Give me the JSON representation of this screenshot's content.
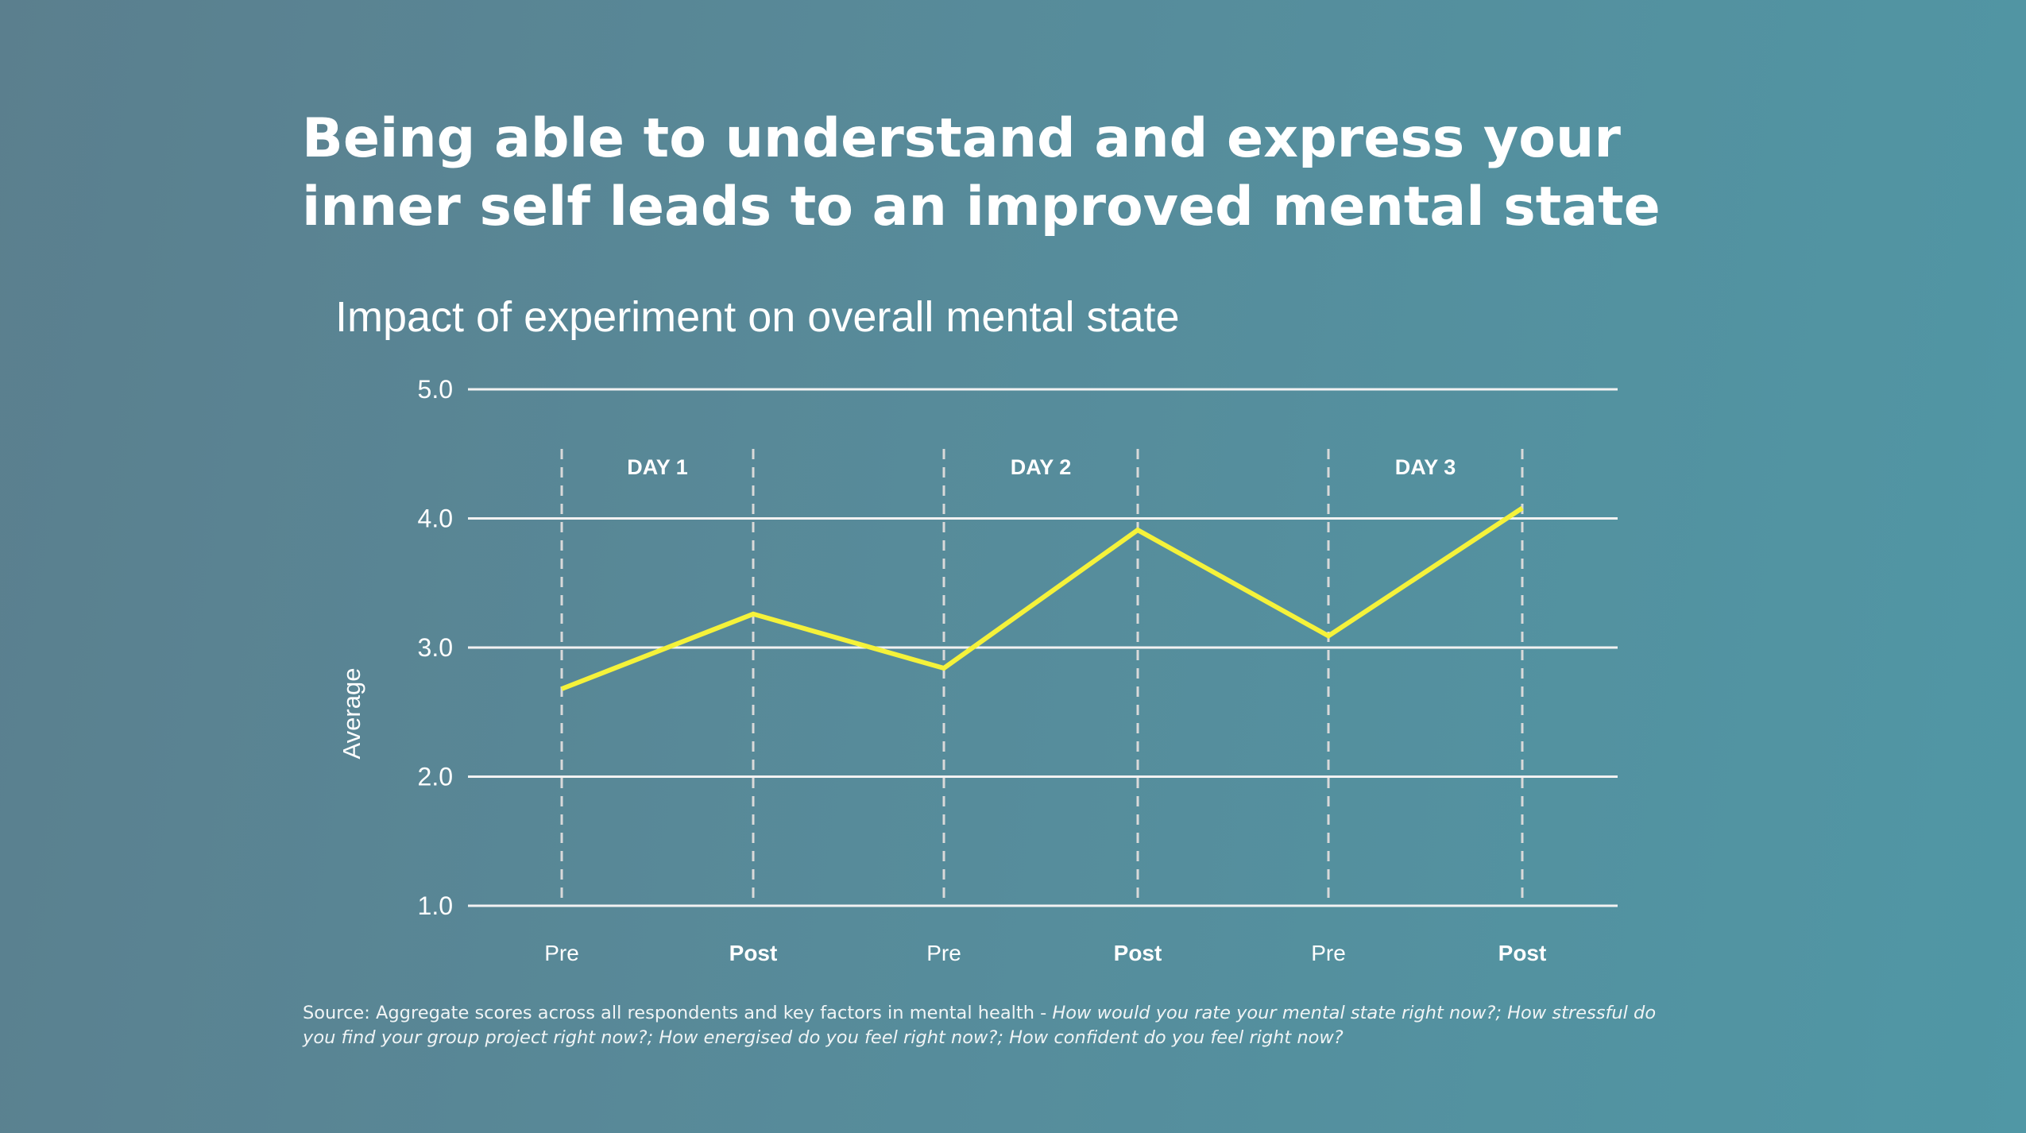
{
  "headline": {
    "line1": "Being able to understand and express your",
    "line2": "inner self leads to an improved mental state"
  },
  "source": {
    "prefix": "Source: Aggregate scores across all respondents and key factors in mental health - ",
    "questions": "How would you rate your mental state right now?; How stressful do you find your group project right now?; How energised do you feel right now?; How confident do you feel right now?"
  },
  "colors": {
    "line": "#f5f23a",
    "gridline": "#f2f2f2",
    "divider": "#d9d9d9",
    "text": "#ffffff"
  },
  "chart_data": {
    "type": "line",
    "title": "Impact of experiment on overall mental state",
    "xlabel": "",
    "ylabel": "Average",
    "ylim": [
      1.0,
      5.0
    ],
    "yticks": [
      "1.0",
      "2.0",
      "3.0",
      "4.0",
      "5.0"
    ],
    "grid": true,
    "categories": [
      "Pre",
      "Post",
      "Pre",
      "Post",
      "Pre",
      "Post"
    ],
    "category_bold": [
      false,
      true,
      false,
      true,
      false,
      true
    ],
    "groups": [
      {
        "label": "DAY 1",
        "span": [
          0,
          1
        ]
      },
      {
        "label": "DAY 2",
        "span": [
          2,
          3
        ]
      },
      {
        "label": "DAY 3",
        "span": [
          4,
          5
        ]
      }
    ],
    "series": [
      {
        "name": "Average",
        "values": [
          2.68,
          3.26,
          2.84,
          3.91,
          3.09,
          4.08
        ]
      }
    ]
  }
}
